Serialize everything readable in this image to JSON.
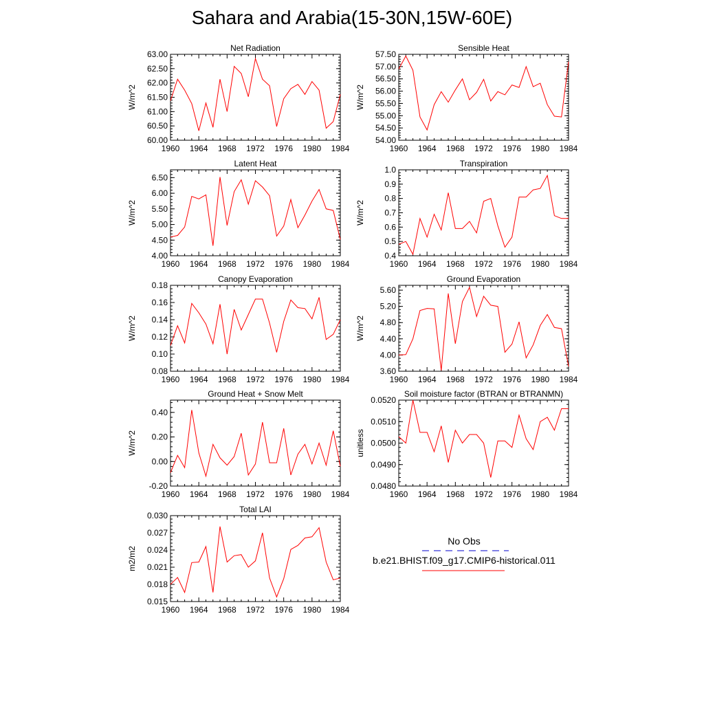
{
  "title": "Sahara and Arabia(15-30N,15W-60E)",
  "colors": {
    "model": "#ff0000",
    "obs": "#0000cd",
    "axis": "#000000"
  },
  "legend": {
    "obs_label": "No Obs",
    "model_label": "b.e21.BHIST.f09_g17.CMIP6-historical.011"
  },
  "chart_data": [
    {
      "type": "line",
      "title": "Net Radiation",
      "ylabel": "W/m^2",
      "xlim": [
        1960,
        1984
      ],
      "ylim": [
        60.0,
        63.0
      ],
      "yticks": [
        "60.00",
        "60.50",
        "61.00",
        "61.50",
        "62.00",
        "62.50",
        "63.00"
      ],
      "xticks": [
        "1960",
        "1964",
        "1968",
        "1972",
        "1976",
        "1980",
        "1984"
      ],
      "x": [
        1960,
        1961,
        1962,
        1963,
        1964,
        1965,
        1966,
        1967,
        1968,
        1969,
        1970,
        1971,
        1972,
        1973,
        1974,
        1975,
        1976,
        1977,
        1978,
        1979,
        1980,
        1981,
        1982,
        1983,
        1984
      ],
      "series": [
        {
          "values": [
            61.38,
            62.13,
            61.75,
            61.28,
            60.33,
            61.3,
            60.45,
            62.13,
            61.0,
            62.58,
            62.33,
            61.52,
            62.85,
            62.13,
            61.9,
            60.48,
            61.45,
            61.8,
            61.95,
            61.6,
            62.05,
            61.75,
            60.42,
            60.65,
            61.6
          ]
        }
      ]
    },
    {
      "type": "line",
      "title": "Sensible Heat",
      "ylabel": "W/m^2",
      "xlim": [
        1960,
        1984
      ],
      "ylim": [
        54.0,
        57.5
      ],
      "yticks": [
        "54.00",
        "54.50",
        "55.00",
        "55.50",
        "56.00",
        "56.50",
        "57.00",
        "57.50"
      ],
      "xticks": [
        "1960",
        "1964",
        "1968",
        "1972",
        "1976",
        "1980",
        "1984"
      ],
      "x": [
        1960,
        1961,
        1962,
        1963,
        1964,
        1965,
        1966,
        1967,
        1968,
        1969,
        1970,
        1971,
        1972,
        1973,
        1974,
        1975,
        1976,
        1977,
        1978,
        1979,
        1980,
        1981,
        1982,
        1983,
        1984
      ],
      "series": [
        {
          "values": [
            56.9,
            57.43,
            56.85,
            54.95,
            54.42,
            55.45,
            55.98,
            55.55,
            56.05,
            56.5,
            55.65,
            55.95,
            56.48,
            55.6,
            55.98,
            55.85,
            56.25,
            56.15,
            57.0,
            56.18,
            56.32,
            55.45,
            54.98,
            54.95,
            57.2
          ]
        }
      ]
    },
    {
      "type": "line",
      "title": "Latent Heat",
      "ylabel": "W/m^2",
      "xlim": [
        1960,
        1984
      ],
      "ylim": [
        4.0,
        6.75
      ],
      "yticks": [
        "4.00",
        "4.50",
        "5.00",
        "5.50",
        "6.00",
        "6.50"
      ],
      "xticks": [
        "1960",
        "1964",
        "1968",
        "1972",
        "1976",
        "1980",
        "1984"
      ],
      "x": [
        1960,
        1961,
        1962,
        1963,
        1964,
        1965,
        1966,
        1967,
        1968,
        1969,
        1970,
        1971,
        1972,
        1973,
        1974,
        1975,
        1976,
        1977,
        1978,
        1979,
        1980,
        1981,
        1982,
        1983,
        1984
      ],
      "series": [
        {
          "values": [
            4.6,
            4.65,
            4.92,
            5.9,
            5.82,
            5.95,
            4.32,
            6.52,
            4.97,
            6.05,
            6.43,
            5.65,
            6.4,
            6.2,
            5.92,
            4.63,
            4.95,
            5.8,
            4.9,
            5.3,
            5.75,
            6.12,
            5.5,
            5.45,
            4.52
          ]
        }
      ]
    },
    {
      "type": "line",
      "title": "Transpiration",
      "ylabel": "W/m^2",
      "xlim": [
        1960,
        1984
      ],
      "ylim": [
        0.4,
        1.0
      ],
      "yticks": [
        "0.4",
        "0.5",
        "0.6",
        "0.7",
        "0.8",
        "0.9",
        "1.0"
      ],
      "xticks": [
        "1960",
        "1964",
        "1968",
        "1972",
        "1976",
        "1980",
        "1984"
      ],
      "x": [
        1960,
        1961,
        1962,
        1963,
        1964,
        1965,
        1966,
        1967,
        1968,
        1969,
        1970,
        1971,
        1972,
        1973,
        1974,
        1975,
        1976,
        1977,
        1978,
        1979,
        1980,
        1981,
        1982,
        1983,
        1984
      ],
      "series": [
        {
          "values": [
            0.48,
            0.5,
            0.41,
            0.66,
            0.53,
            0.69,
            0.58,
            0.84,
            0.59,
            0.59,
            0.64,
            0.56,
            0.78,
            0.8,
            0.61,
            0.46,
            0.53,
            0.81,
            0.81,
            0.86,
            0.87,
            0.96,
            0.68,
            0.66,
            0.66
          ]
        }
      ]
    },
    {
      "type": "line",
      "title": "Canopy Evaporation",
      "ylabel": "W/m^2",
      "xlim": [
        1960,
        1984
      ],
      "ylim": [
        0.08,
        0.18
      ],
      "yticks": [
        "0.08",
        "0.10",
        "0.12",
        "0.14",
        "0.16",
        "0.18"
      ],
      "xticks": [
        "1960",
        "1964",
        "1968",
        "1972",
        "1976",
        "1980",
        "1984"
      ],
      "x": [
        1960,
        1961,
        1962,
        1963,
        1964,
        1965,
        1966,
        1967,
        1968,
        1969,
        1970,
        1971,
        1972,
        1973,
        1974,
        1975,
        1976,
        1977,
        1978,
        1979,
        1980,
        1981,
        1982,
        1983,
        1984
      ],
      "series": [
        {
          "values": [
            0.11,
            0.133,
            0.113,
            0.159,
            0.148,
            0.135,
            0.112,
            0.158,
            0.1,
            0.152,
            0.128,
            0.146,
            0.164,
            0.164,
            0.136,
            0.102,
            0.138,
            0.163,
            0.154,
            0.153,
            0.141,
            0.166,
            0.117,
            0.123,
            0.14
          ]
        }
      ]
    },
    {
      "type": "line",
      "title": "Ground Evaporation",
      "ylabel": "W/m^2",
      "xlim": [
        1960,
        1984
      ],
      "ylim": [
        3.6,
        5.72
      ],
      "yticks": [
        "3.60",
        "4.00",
        "4.40",
        "4.80",
        "5.20",
        "5.60"
      ],
      "xticks": [
        "1960",
        "1964",
        "1968",
        "1972",
        "1976",
        "1980",
        "1984"
      ],
      "x": [
        1960,
        1961,
        1962,
        1963,
        1964,
        1965,
        1966,
        1967,
        1968,
        1969,
        1970,
        1971,
        1972,
        1973,
        1974,
        1975,
        1976,
        1977,
        1978,
        1979,
        1980,
        1981,
        1982,
        1983,
        1984
      ],
      "series": [
        {
          "values": [
            4.0,
            4.01,
            4.4,
            5.1,
            5.15,
            5.14,
            3.62,
            5.52,
            4.28,
            5.32,
            5.67,
            4.95,
            5.45,
            5.23,
            5.2,
            4.07,
            4.27,
            4.82,
            3.93,
            4.25,
            4.73,
            5.0,
            4.68,
            4.65,
            3.72
          ]
        }
      ]
    },
    {
      "type": "line",
      "title": "Ground Heat + Snow Melt",
      "ylabel": "W/m^2",
      "xlim": [
        1960,
        1984
      ],
      "ylim": [
        -0.2,
        0.5
      ],
      "yticks": [
        "-0.20",
        "0.00",
        "0.20",
        "0.40"
      ],
      "xticks": [
        "1960",
        "1964",
        "1968",
        "1972",
        "1976",
        "1980",
        "1984"
      ],
      "x": [
        1960,
        1961,
        1962,
        1963,
        1964,
        1965,
        1966,
        1967,
        1968,
        1969,
        1970,
        1971,
        1972,
        1973,
        1974,
        1975,
        1976,
        1977,
        1978,
        1979,
        1980,
        1981,
        1982,
        1983,
        1984
      ],
      "series": [
        {
          "values": [
            -0.09,
            0.05,
            -0.05,
            0.42,
            0.07,
            -0.12,
            0.14,
            0.03,
            -0.03,
            0.04,
            0.23,
            -0.11,
            -0.02,
            0.32,
            -0.01,
            -0.01,
            0.27,
            -0.11,
            0.06,
            0.14,
            -0.02,
            0.15,
            -0.03,
            0.25,
            -0.04
          ]
        }
      ]
    },
    {
      "type": "line",
      "title": "Soil moisture factor (BTRAN or BTRANMN)",
      "ylabel": "unitless",
      "xlim": [
        1960,
        1984
      ],
      "ylim": [
        0.048,
        0.052
      ],
      "yticks": [
        "0.0480",
        "0.0490",
        "0.0500",
        "0.0510",
        "0.0520"
      ],
      "xticks": [
        "1960",
        "1964",
        "1968",
        "1972",
        "1976",
        "1980",
        "1984"
      ],
      "x": [
        1960,
        1961,
        1962,
        1963,
        1964,
        1965,
        1966,
        1967,
        1968,
        1969,
        1970,
        1971,
        1972,
        1973,
        1974,
        1975,
        1976,
        1977,
        1978,
        1979,
        1980,
        1981,
        1982,
        1983,
        1984
      ],
      "series": [
        {
          "values": [
            0.0503,
            0.05,
            0.052,
            0.0505,
            0.0505,
            0.0496,
            0.0508,
            0.0491,
            0.0506,
            0.05,
            0.0504,
            0.0504,
            0.05,
            0.0484,
            0.0501,
            0.0501,
            0.0498,
            0.0513,
            0.0502,
            0.0497,
            0.051,
            0.0512,
            0.0506,
            0.0516,
            0.0516
          ]
        }
      ]
    },
    {
      "type": "line",
      "title": "Total LAI",
      "ylabel": "m2/m2",
      "xlim": [
        1960,
        1984
      ],
      "ylim": [
        0.015,
        0.03
      ],
      "yticks": [
        "0.015",
        "0.018",
        "0.021",
        "0.024",
        "0.027",
        "0.030"
      ],
      "xticks": [
        "1960",
        "1964",
        "1968",
        "1972",
        "1976",
        "1980",
        "1984"
      ],
      "x": [
        1960,
        1961,
        1962,
        1963,
        1964,
        1965,
        1966,
        1967,
        1968,
        1969,
        1970,
        1971,
        1972,
        1973,
        1974,
        1975,
        1976,
        1977,
        1978,
        1979,
        1980,
        1981,
        1982,
        1983,
        1984
      ],
      "series": [
        {
          "values": [
            0.018,
            0.0192,
            0.0166,
            0.0218,
            0.0219,
            0.0246,
            0.0166,
            0.0281,
            0.0219,
            0.023,
            0.0232,
            0.021,
            0.0221,
            0.027,
            0.0191,
            0.0158,
            0.019,
            0.0241,
            0.0248,
            0.0261,
            0.0263,
            0.0279,
            0.0219,
            0.0188,
            0.0191
          ]
        }
      ]
    }
  ]
}
